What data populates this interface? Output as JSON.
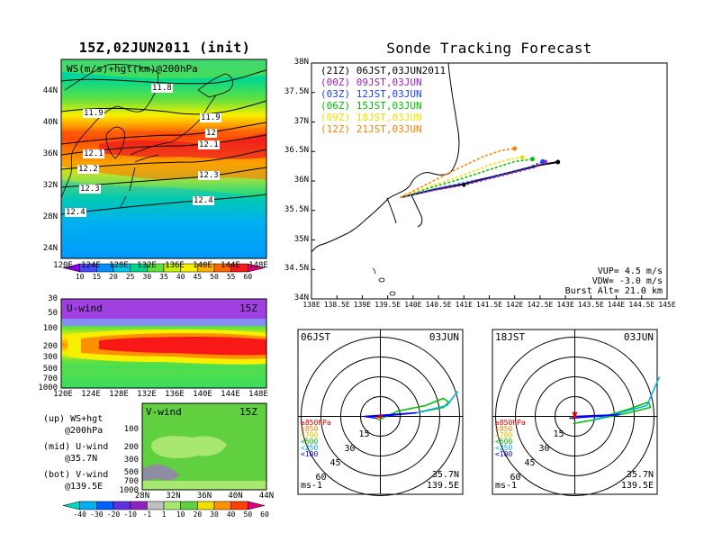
{
  "map": {
    "title": "15Z,02JUN2011 (init)",
    "label": "WS(m/s)+hgt(km)@200hPa",
    "lat_ticks": [
      "44N",
      "40N",
      "36N",
      "32N",
      "28N",
      "24N"
    ],
    "lon_ticks": [
      "120E",
      "124E",
      "128E",
      "132E",
      "136E",
      "140E",
      "144E",
      "148E"
    ],
    "contour_labels": [
      "11.8",
      "11.9",
      "11.9",
      "12",
      "12.1",
      "12.1",
      "12.2",
      "12.3",
      "12.3",
      "12.4",
      "12.4"
    ],
    "colorbar_labels": [
      "10",
      "15",
      "20",
      "25",
      "30",
      "35",
      "40",
      "45",
      "50",
      "55",
      "60"
    ],
    "colorbar_colors": [
      "#8800e0",
      "#4848ff",
      "#0090ff",
      "#00c8e8",
      "#00d890",
      "#60e040",
      "#c8f000",
      "#f8f000",
      "#ffb000",
      "#ff6800",
      "#f81818",
      "#e0007c"
    ]
  },
  "uwind": {
    "label": "U-wind",
    "time": "15Z",
    "p_ticks": [
      "30",
      "50",
      "100",
      "200",
      "300",
      "500",
      "700",
      "1000"
    ],
    "lon_ticks": [
      "120E",
      "124E",
      "128E",
      "132E",
      "136E",
      "140E",
      "144E",
      "148E"
    ]
  },
  "vwind": {
    "label": "V-wind",
    "time": "15Z",
    "p_ticks": [
      "100",
      "200",
      "300",
      "500",
      "700",
      "1000"
    ],
    "lat_ticks": [
      "28N",
      "32N",
      "36N",
      "40N",
      "44N"
    ],
    "colorbar_labels": [
      "-40",
      "-30",
      "-20",
      "-10",
      "-1",
      "1",
      "10",
      "20",
      "30",
      "40",
      "50",
      "60"
    ],
    "colorbar_colors": [
      "#00d8c0",
      "#00b0f0",
      "#0060ff",
      "#6030e0",
      "#9020c0",
      "#c0c0c0",
      "#a8e870",
      "#60d040",
      "#f0e000",
      "#ff9000",
      "#ff4000",
      "#e0007c"
    ]
  },
  "legend_notes": [
    {
      "a": "(up) WS+hgt",
      "b": "@200hPa"
    },
    {
      "a": "(mid) U-wind",
      "b": "@35.7N"
    },
    {
      "a": "(bot) V-wind",
      "b": "@139.5E"
    }
  ],
  "tracking": {
    "title": "Sonde Tracking Forecast",
    "lat_ticks": [
      "38N",
      "37.5N",
      "37N",
      "36.5N",
      "36N",
      "35.5N",
      "35N",
      "34.5N",
      "34N"
    ],
    "lon_ticks": [
      "138E",
      "138.5E",
      "139E",
      "139.5E",
      "140E",
      "140.5E",
      "141E",
      "141.5E",
      "142E",
      "142.5E",
      "143E",
      "143.5E",
      "144E",
      "144.5E",
      "145E"
    ],
    "info": [
      "VUP= 4.5 m/s",
      "VDW= -3.0 m/s",
      "Burst Alt= 21.0 km"
    ]
  },
  "hodo_left": {
    "time": "06JST",
    "date": "03JUN",
    "lat": "35.7N",
    "lon": "139.5E",
    "unit": "ms-1",
    "ring_labels": [
      "15",
      "30",
      "45",
      "60"
    ]
  },
  "hodo_right": {
    "time": "18JST",
    "date": "03JUN",
    "lat": "35.7N",
    "lon": "139.5E",
    "unit": "ms-1",
    "ring_labels": [
      "15",
      "30",
      "45",
      "60"
    ]
  },
  "hodo_levels": [
    {
      "label": "≥850hPa",
      "color": "#e00000"
    },
    {
      "label": "<850",
      "color": "#ff8000"
    },
    {
      "label": "<700",
      "color": "#e0c000"
    },
    {
      "label": "<500",
      "color": "#00c000"
    },
    {
      "label": "<250",
      "color": "#00b0e0"
    },
    {
      "label": "<100",
      "color": "#0000ff"
    }
  ],
  "chart_data": {
    "type": "line",
    "title": "Sonde Tracking Forecast",
    "xlabel": "",
    "ylabel": "",
    "xlim": [
      138,
      145
    ],
    "ylim": [
      34,
      38
    ],
    "legend_position": "top-left",
    "series": [
      {
        "name": "(21Z) 06JST,03JUN2011",
        "color": "#000000",
        "points": [
          [
            139.75,
            35.72
          ],
          [
            140.4,
            35.85
          ],
          [
            141.0,
            35.95
          ],
          [
            141.8,
            36.12
          ],
          [
            142.5,
            36.27
          ],
          [
            142.85,
            36.32
          ]
        ]
      },
      {
        "name": "(00Z) 09JST,03JUN",
        "color": "#a020c0",
        "points": [
          [
            139.75,
            35.72
          ],
          [
            140.4,
            35.84
          ],
          [
            141.0,
            35.93
          ],
          [
            141.8,
            36.1
          ],
          [
            142.4,
            36.23
          ],
          [
            142.6,
            36.32
          ]
        ]
      },
      {
        "name": "(03Z) 12JST,03JUN",
        "color": "#2040ff",
        "points": [
          [
            139.75,
            35.72
          ],
          [
            140.4,
            35.86
          ],
          [
            141.0,
            35.97
          ],
          [
            141.8,
            36.12
          ],
          [
            142.3,
            36.24
          ],
          [
            142.55,
            36.33
          ]
        ]
      },
      {
        "name": "(06Z) 15JST,03JUN",
        "color": "#00c000",
        "points": [
          [
            139.75,
            35.72
          ],
          [
            140.4,
            35.9
          ],
          [
            141.0,
            36.05
          ],
          [
            141.6,
            36.22
          ],
          [
            142.0,
            36.33
          ],
          [
            142.35,
            36.37
          ]
        ]
      },
      {
        "name": "(09Z) 18JST,03JUN",
        "color": "#f0e000",
        "points": [
          [
            139.75,
            35.72
          ],
          [
            140.4,
            35.93
          ],
          [
            141.0,
            36.1
          ],
          [
            141.5,
            36.27
          ],
          [
            141.9,
            36.37
          ],
          [
            142.15,
            36.4
          ]
        ]
      },
      {
        "name": "(12Z) 21JST,03JUN",
        "color": "#ff8000",
        "points": [
          [
            139.75,
            35.72
          ],
          [
            140.4,
            36.0
          ],
          [
            140.9,
            36.22
          ],
          [
            141.4,
            36.42
          ],
          [
            141.75,
            36.52
          ],
          [
            142.0,
            36.55
          ]
        ]
      }
    ]
  }
}
